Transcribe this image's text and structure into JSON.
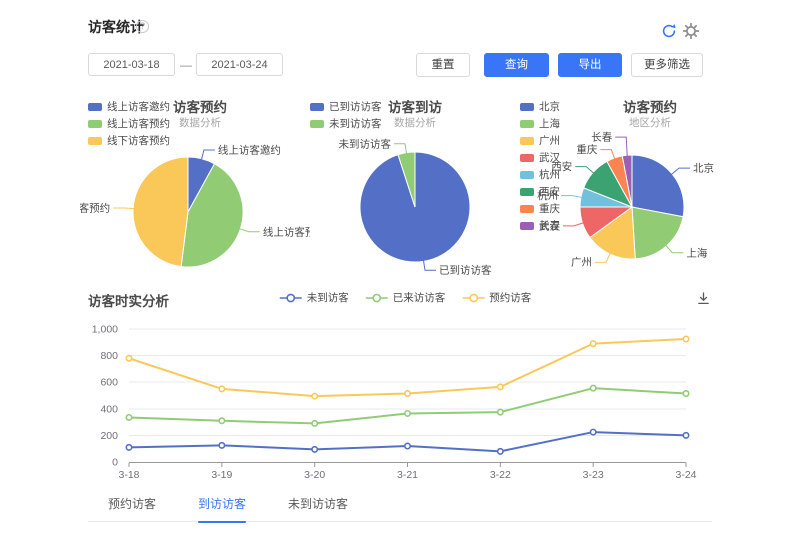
{
  "page": {
    "title": "访客统计"
  },
  "icons": {
    "help_glyph": "?",
    "refresh": "refresh-icon",
    "settings": "gear-icon",
    "download": "download-icon"
  },
  "filters": {
    "date_start": "2021-03-18",
    "separator": "—",
    "date_end": "2021-03-24",
    "reset_label": "重置",
    "query_label": "查询",
    "export_label": "导出",
    "more_filters_label": "更多筛选"
  },
  "colors": {
    "primary": "#3875f7",
    "palette": [
      "#5470c6",
      "#91cc75",
      "#fac858",
      "#ee6666",
      "#73c0de",
      "#3ba272",
      "#fc8452",
      "#9a60b4"
    ],
    "axis_text": "#6e7079",
    "axis_line": "#999999",
    "grid_line": "#e6e9f0"
  },
  "chart_data": [
    {
      "type": "pie",
      "title": "访客预约",
      "subtitle": "数据分析",
      "legend_position": "left",
      "labels": [
        "线上访客邀约",
        "线上访客预约",
        "线下访客预约"
      ],
      "values": [
        8,
        44,
        48
      ],
      "colors": [
        "#5470c6",
        "#91cc75",
        "#fac858"
      ]
    },
    {
      "type": "pie",
      "title": "访客到访",
      "subtitle": "数据分析",
      "legend_position": "left",
      "labels": [
        "已到访访客",
        "未到访访客"
      ],
      "values": [
        95,
        5
      ],
      "colors": [
        "#5470c6",
        "#91cc75"
      ]
    },
    {
      "type": "pie",
      "title": "访客预约",
      "subtitle": "地区分析",
      "legend_position": "left",
      "labels": [
        "北京",
        "上海",
        "广州",
        "武汉",
        "杭州",
        "西安",
        "重庆",
        "长春"
      ],
      "values": [
        28,
        21,
        16,
        10,
        6,
        11,
        5,
        3
      ],
      "colors": [
        "#5470c6",
        "#91cc75",
        "#fac858",
        "#ee6666",
        "#73c0de",
        "#3ba272",
        "#fc8452",
        "#9a60b4"
      ]
    },
    {
      "type": "line",
      "title": "访客时实分析",
      "x": [
        "3-18",
        "3-19",
        "3-20",
        "3-21",
        "3-22",
        "3-23",
        "3-24"
      ],
      "series": [
        {
          "name": "未到访客",
          "color": "#5470c6",
          "values": [
            110,
            125,
            95,
            120,
            80,
            225,
            200
          ]
        },
        {
          "name": "已来访访客",
          "color": "#91cc75",
          "values": [
            335,
            310,
            290,
            365,
            375,
            555,
            515
          ]
        },
        {
          "name": "预约访客",
          "color": "#fac858",
          "values": [
            780,
            550,
            495,
            515,
            565,
            890,
            925
          ]
        }
      ],
      "ylim": [
        0,
        1000
      ],
      "yticks": [
        {
          "label": "0",
          "value": 0
        },
        {
          "label": "200",
          "value": 200
        },
        {
          "label": "400",
          "value": 400
        },
        {
          "label": "600",
          "value": 600
        },
        {
          "label": "800",
          "value": 800
        },
        {
          "label": "1,000",
          "value": 1000
        }
      ],
      "grid": true,
      "legend_position": "top-center"
    }
  ],
  "tabs": {
    "items": [
      {
        "label": "预约访客",
        "active": false
      },
      {
        "label": "到访访客",
        "active": true
      },
      {
        "label": "未到访访客",
        "active": false
      }
    ]
  }
}
